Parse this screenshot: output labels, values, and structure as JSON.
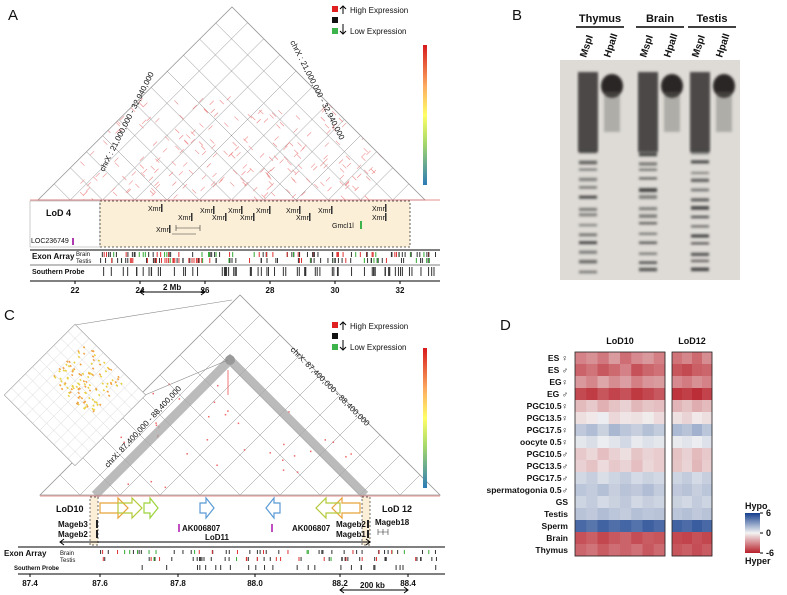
{
  "panel_a": {
    "label": "A",
    "legend_high": "High Expression",
    "legend_low": "Low Expression",
    "region_left": "chrX : 21,000,000 - 32,940,000",
    "region_right": "chrX : 21,000,000 - 32,940,000",
    "lod": "LoD 4",
    "genes": [
      "Xmr",
      "Xmr",
      "Xmr",
      "Xmr",
      "Xmr",
      "Xmr",
      "Xmr",
      "Xmr",
      "Xmr",
      "Xmr",
      "Xmr",
      "Xmr",
      "Xmr"
    ],
    "gene_other": "Gmcl1l",
    "loc": "LOC236749",
    "exon_array": "Exon Array",
    "brain": "Brain",
    "testis": "Testis",
    "southern_probe": "Southern Probe",
    "scale_ticks": [
      "22",
      "24",
      "26",
      "28",
      "30",
      "32"
    ],
    "scale_bar": "2 Mb"
  },
  "panel_b": {
    "label": "B",
    "tissues": [
      "Thymus",
      "Brain",
      "Testis"
    ],
    "enzymes": [
      "MspI",
      "HpaII",
      "MspI",
      "HpaII",
      "MspI",
      "HpaII"
    ]
  },
  "panel_c": {
    "label": "C",
    "legend_high": "High Expression",
    "legend_low": "Low Expression",
    "region_left": "chrX: 87,400,000 - 88,400,000",
    "region_right": "chrX: 87,400,000 - 88,400,000",
    "lod_left": "LoD10",
    "lod_right": "LoD 12",
    "lod_mid": "LoD11",
    "genes": [
      "Mageb3",
      "Mageb2",
      "AK006807",
      "AK006807",
      "Mageb2",
      "Mageb1",
      "Mageb18"
    ],
    "exon_array": "Exon Array",
    "brain": "Brain",
    "testis": "Testis",
    "southern_probe": "Southern Probe",
    "scale_ticks": [
      "87.4",
      "87.6",
      "87.8",
      "88.0",
      "88.2",
      "88.4"
    ],
    "scale_bar": "200 kb"
  },
  "panel_d": {
    "label": "D",
    "groups": [
      "LoD10",
      "LoD12"
    ],
    "rows": [
      "ES ♀",
      "ES ♂",
      "EG♀",
      "EG ♂",
      "PGC10.5♀",
      "PGC13.5♀",
      "PGC17.5♀",
      "oocyte 0.5♀",
      "PGC10.5♂",
      "PGC13.5♂",
      "PGC17.5♂",
      "spermatogonia 0.5♂",
      "GS",
      "Testis",
      "Sperm",
      "Brain",
      "Thymus"
    ],
    "values_lod10": [
      [
        -3.2,
        -2.8,
        -3.5,
        -2.5,
        -3.8,
        -3.0,
        -2.6,
        -3.3
      ],
      [
        -4.1,
        -3.6,
        -4.4,
        -3.9,
        -3.2,
        -4.6,
        -4.0,
        -3.7
      ],
      [
        -2.6,
        -3.1,
        -2.2,
        -2.9,
        -2.4,
        -3.3,
        -2.7,
        -2.5
      ],
      [
        -4.8,
        -5.2,
        -4.5,
        -5.0,
        -4.6,
        -5.3,
        -4.9,
        -4.4
      ],
      [
        -1.6,
        -1.2,
        -1.9,
        -1.4,
        -1.0,
        -1.7,
        -1.3,
        -1.5
      ],
      [
        -0.6,
        -0.3,
        0.2,
        -0.8,
        -0.4,
        -0.5,
        -0.2,
        -0.7
      ],
      [
        1.4,
        1.8,
        1.1,
        2.0,
        1.5,
        1.2,
        1.7,
        1.3
      ],
      [
        0.4,
        0.7,
        0.2,
        0.5,
        0.9,
        0.3,
        0.6,
        0.4
      ],
      [
        -1.2,
        -0.8,
        -1.5,
        -1.0,
        -0.6,
        -1.3,
        -0.9,
        -1.1
      ],
      [
        -1.0,
        -1.4,
        -0.7,
        -1.2,
        -0.9,
        -1.5,
        -0.8,
        -1.1
      ],
      [
        0.9,
        1.2,
        0.7,
        1.0,
        1.3,
        0.8,
        1.1,
        0.9
      ],
      [
        1.5,
        1.3,
        1.7,
        1.2,
        1.6,
        1.4,
        1.8,
        1.3
      ],
      [
        1.0,
        1.3,
        0.8,
        1.1,
        1.4,
        0.9,
        1.2,
        1.0
      ],
      [
        1.6,
        1.4,
        1.8,
        1.5,
        1.3,
        1.7,
        1.5,
        1.6
      ],
      [
        4.6,
        4.2,
        4.8,
        4.4,
        4.7,
        4.3,
        4.9,
        4.5
      ],
      [
        -4.6,
        -4.2,
        -4.9,
        -4.4,
        -4.1,
        -4.7,
        -4.3,
        -4.5
      ],
      [
        -4.0,
        -3.6,
        -4.3,
        -3.8,
        -4.1,
        -3.7,
        -4.4,
        -3.9
      ]
    ],
    "values_lod12": [
      [
        -3.6,
        -3.1,
        -3.9,
        -2.9
      ],
      [
        -4.5,
        -4.8,
        -4.2,
        -4.0
      ],
      [
        -3.0,
        -3.4,
        -2.8,
        -3.2
      ],
      [
        -5.4,
        -5.1,
        -5.6,
        -5.0
      ],
      [
        -1.8,
        -1.4,
        -2.0,
        -1.6
      ],
      [
        -0.5,
        -0.9,
        -0.3,
        -0.6
      ],
      [
        1.9,
        1.6,
        2.2,
        1.5
      ],
      [
        0.3,
        0.5,
        0.2,
        0.6
      ],
      [
        -1.4,
        -1.0,
        -1.6,
        -1.2
      ],
      [
        -1.3,
        -0.9,
        -1.7,
        -1.1
      ],
      [
        1.0,
        1.3,
        0.8,
        1.2
      ],
      [
        1.4,
        1.6,
        1.2,
        1.5
      ],
      [
        1.1,
        0.9,
        1.3,
        1.0
      ],
      [
        1.5,
        1.7,
        1.4,
        1.6
      ],
      [
        4.8,
        4.5,
        5.0,
        4.6
      ],
      [
        -4.8,
        -5.0,
        -4.6,
        -4.9
      ],
      [
        -4.5,
        -4.2,
        -4.7,
        -4.3
      ]
    ],
    "clim": [
      -6,
      6
    ],
    "colors": {
      "low": "#b8202a",
      "mid": "#f3f3f3",
      "high": "#153f8e"
    },
    "colorbar_top": "Hypo",
    "colorbar_bottom": "Hyper",
    "colorbar_ticks": [
      6,
      0,
      -6
    ]
  }
}
